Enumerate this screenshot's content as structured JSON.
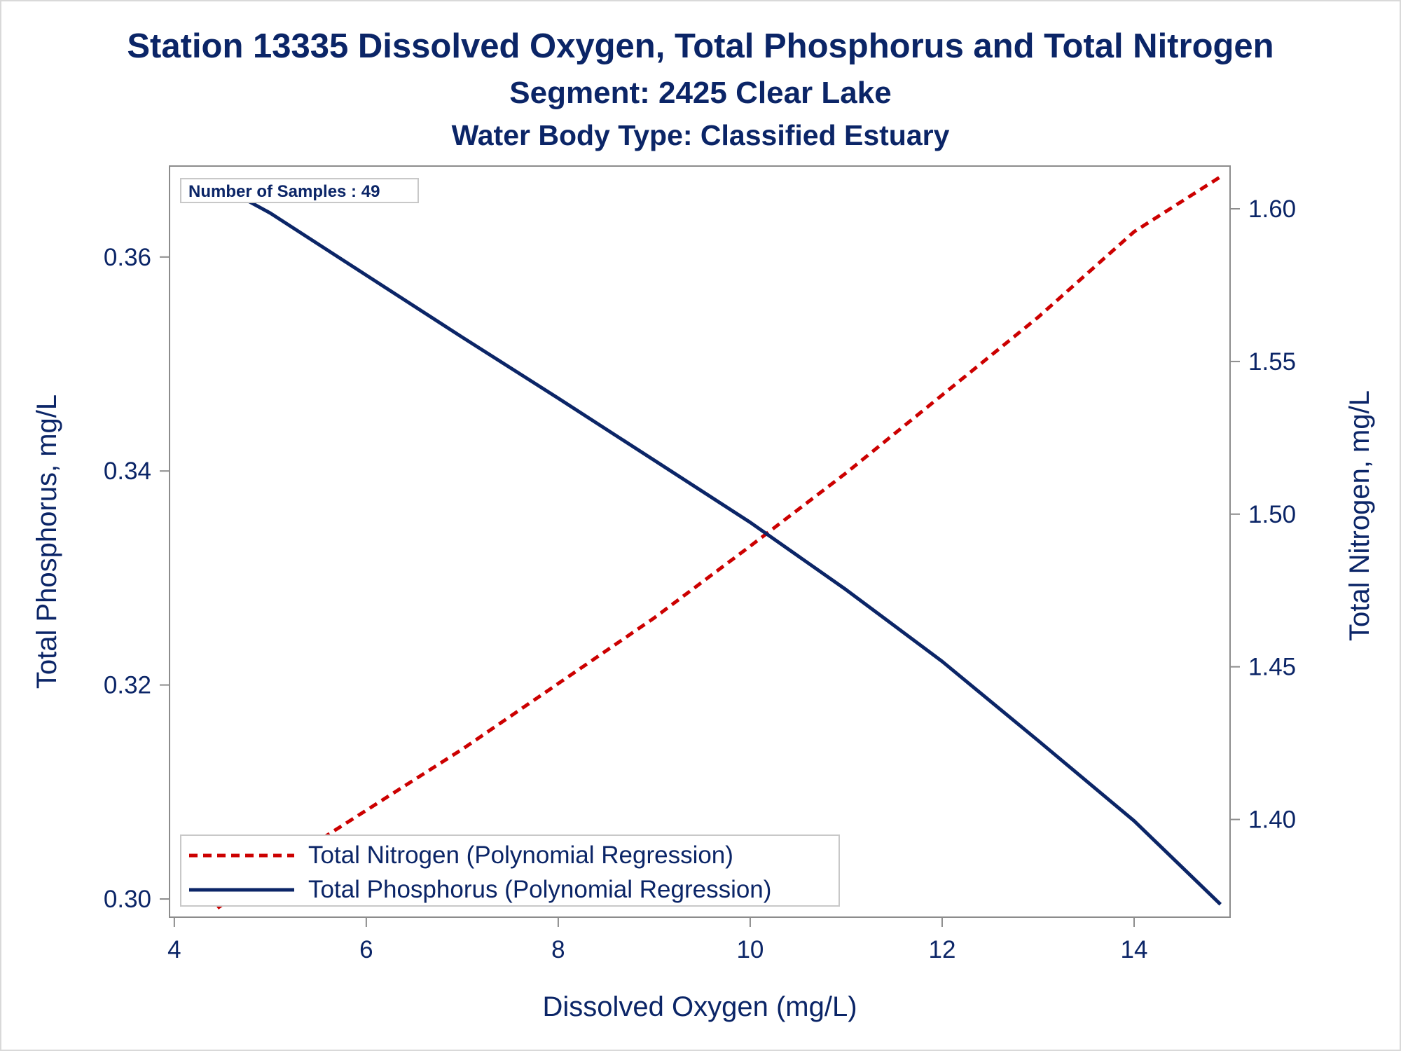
{
  "chart_data": {
    "type": "line",
    "title": "Station 13335  Dissolved Oxygen, Total Phosphorus and Total Nitrogen",
    "subtitle": "Segment: 2425  Clear Lake",
    "subtitle2": "Water Body Type: Classified Estuary",
    "annotation": "Number of Samples : 49",
    "xlabel": "Dissolved Oxygen (mg/L)",
    "ylabel_left": "Total Phosphorus, mg/L",
    "ylabel_right": "Total Nitrogen, mg/L",
    "xlim": [
      3.95,
      15.0
    ],
    "ylim_left": [
      0.2983,
      0.3685
    ],
    "ylim_right": [
      1.368,
      1.614
    ],
    "x_ticks": [
      4,
      6,
      8,
      10,
      12,
      14
    ],
    "y_left_ticks": [
      0.3,
      0.32,
      0.34,
      0.36
    ],
    "y_right_ticks": [
      1.4,
      1.45,
      1.5,
      1.55,
      1.6
    ],
    "grid": false,
    "legend_position": "bottom-left",
    "series": [
      {
        "name": "Total Nitrogen (Polynomial Regression)",
        "axis": "right",
        "color": "#cc0000",
        "style": "dashed",
        "x": [
          4.45,
          5.0,
          6.0,
          7.0,
          8.0,
          9.0,
          10.0,
          11.0,
          12.0,
          13.0,
          14.0,
          14.9
        ],
        "y": [
          1.371,
          1.383,
          1.403,
          1.423,
          1.4445,
          1.466,
          1.4895,
          1.5135,
          1.539,
          1.5645,
          1.5925,
          1.6105
        ]
      },
      {
        "name": "Total Phosphorus (Polynomial Regression)",
        "axis": "left",
        "color": "#0b2567",
        "style": "solid",
        "x": [
          4.45,
          5.0,
          6.0,
          7.0,
          8.0,
          9.0,
          10.0,
          11.0,
          12.0,
          13.0,
          14.0,
          14.9
        ],
        "y": [
          0.3668,
          0.3641,
          0.3583,
          0.3525,
          0.3468,
          0.341,
          0.3352,
          0.3289,
          0.3222,
          0.3148,
          0.3073,
          0.2995
        ]
      }
    ]
  }
}
